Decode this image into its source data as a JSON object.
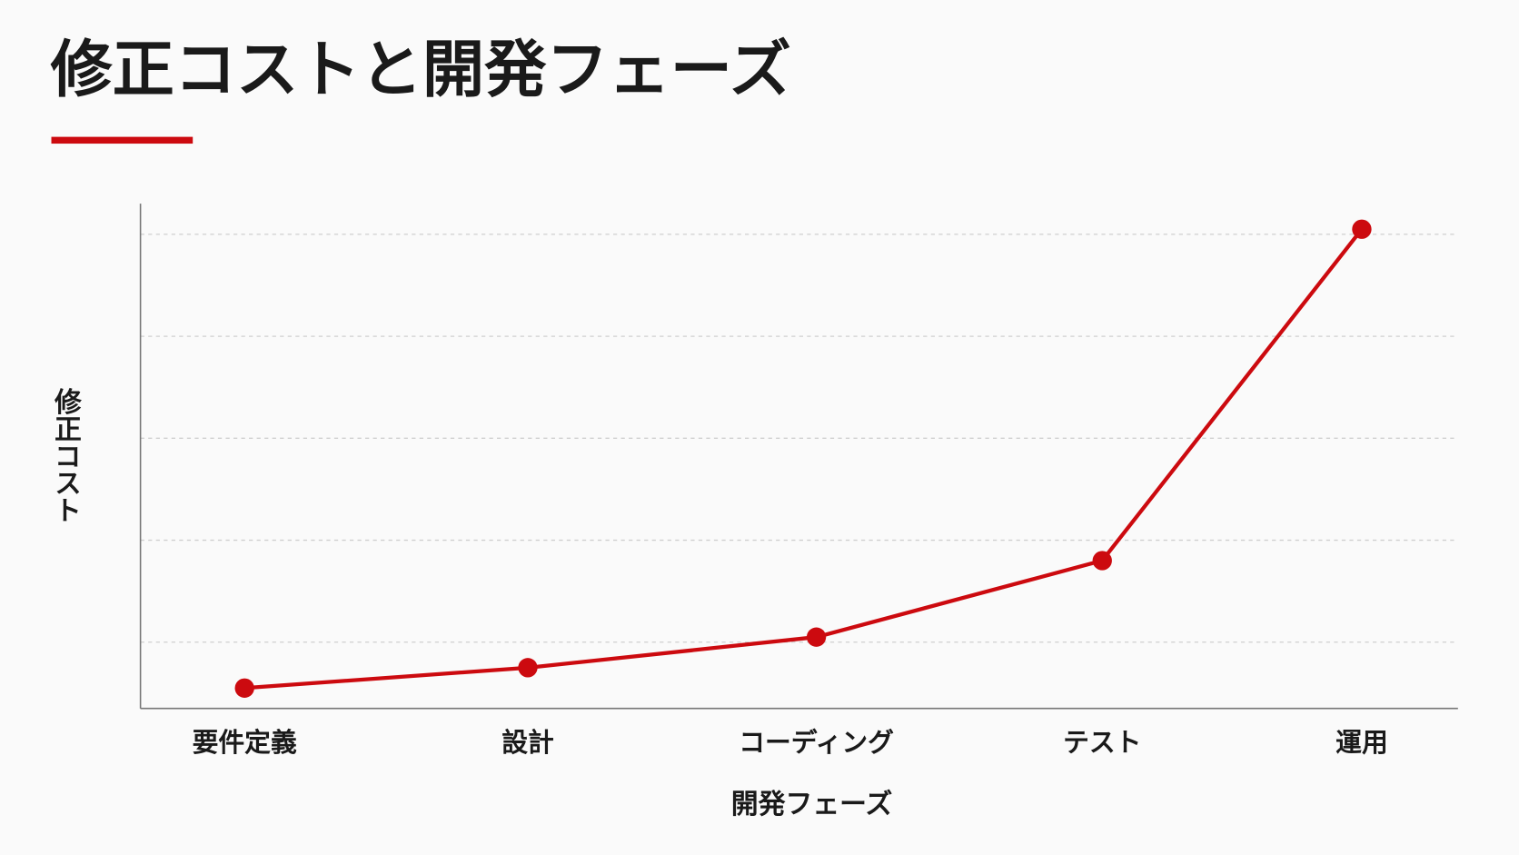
{
  "chart_data": {
    "type": "line",
    "title": "修正コストと開発フェーズ",
    "x_label": "開発フェーズ",
    "y_label": "修正コスト",
    "categories": [
      "要件定義",
      "設計",
      "コーディング",
      "テスト",
      "運用"
    ],
    "values": [
      11,
      15,
      21,
      36,
      101
    ],
    "color": "#cc0a0f",
    "ylim": [
      7,
      106
    ],
    "yticks": [
      20,
      40,
      60,
      80,
      100
    ],
    "grid": true
  }
}
